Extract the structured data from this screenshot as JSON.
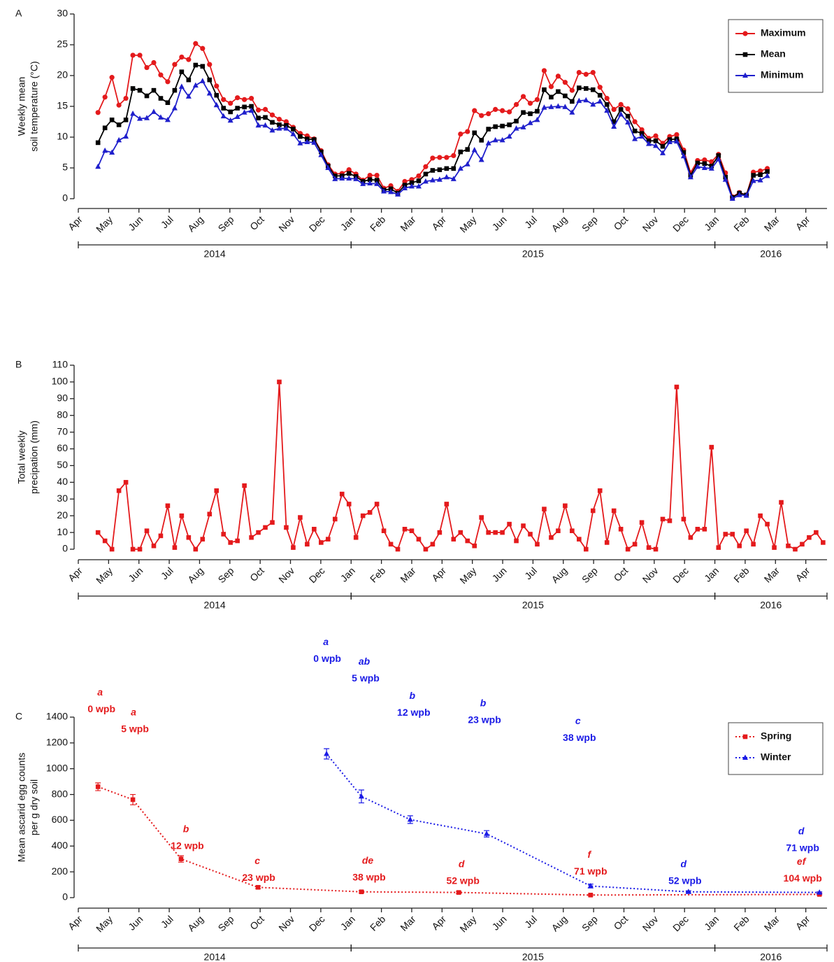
{
  "chart_data": [
    {
      "type": "line",
      "panel": "A",
      "ylabel": [
        "Weekly mean",
        "soil temperature (°C)"
      ],
      "xlim": [
        0,
        24.7
      ],
      "ylim": [
        0,
        30
      ],
      "yticks": [
        0,
        5,
        10,
        15,
        20,
        25,
        30
      ],
      "xticks": [
        {
          "value": 0,
          "label": "Apr"
        },
        {
          "value": 1,
          "label": "May"
        },
        {
          "value": 2,
          "label": "Jun"
        },
        {
          "value": 3,
          "label": "Jul"
        },
        {
          "value": 4,
          "label": "Aug"
        },
        {
          "value": 5,
          "label": "Sep"
        },
        {
          "value": 6,
          "label": "Oct"
        },
        {
          "value": 7,
          "label": "Nov"
        },
        {
          "value": 8,
          "label": "Dec"
        },
        {
          "value": 9,
          "label": "Jan"
        },
        {
          "value": 10,
          "label": "Feb"
        },
        {
          "value": 11,
          "label": "Mar"
        },
        {
          "value": 12,
          "label": "Apr"
        },
        {
          "value": 13,
          "label": "May"
        },
        {
          "value": 14,
          "label": "Jun"
        },
        {
          "value": 15,
          "label": "Jul"
        },
        {
          "value": 16,
          "label": "Aug"
        },
        {
          "value": 17,
          "label": "Sep"
        },
        {
          "value": 18,
          "label": "Oct"
        },
        {
          "value": 19,
          "label": "Nov"
        },
        {
          "value": 20,
          "label": "Dec"
        },
        {
          "value": 21,
          "label": "Jan"
        },
        {
          "value": 22,
          "label": "Feb"
        },
        {
          "value": 23,
          "label": "Mar"
        },
        {
          "value": 24,
          "label": "Apr"
        }
      ],
      "years": [
        {
          "label": "2014",
          "from": 0,
          "to": 9
        },
        {
          "label": "2015",
          "from": 9,
          "to": 21
        },
        {
          "label": "2016",
          "from": 21,
          "to": 24.7
        }
      ],
      "legend": "upper right",
      "x": [
        0.65,
        0.88,
        1.11,
        1.34,
        1.57,
        1.8,
        2.03,
        2.26,
        2.49,
        2.72,
        2.95,
        3.18,
        3.41,
        3.64,
        3.87,
        4.1,
        4.33,
        4.56,
        4.79,
        5.02,
        5.25,
        5.48,
        5.71,
        5.94,
        6.17,
        6.4,
        6.63,
        6.86,
        7.09,
        7.32,
        7.55,
        7.78,
        8.01,
        8.24,
        8.47,
        8.7,
        8.93,
        9.16,
        9.39,
        9.62,
        9.85,
        10.08,
        10.31,
        10.54,
        10.77,
        11,
        11.23,
        11.46,
        11.69,
        11.92,
        12.15,
        12.38,
        12.61,
        12.84,
        13.07,
        13.3,
        13.53,
        13.76,
        13.99,
        14.22,
        14.45,
        14.68,
        14.91,
        15.14,
        15.37,
        15.6,
        15.83,
        16.06,
        16.29,
        16.52,
        16.75,
        16.98,
        17.21,
        17.44,
        17.67,
        17.9,
        18.13,
        18.36,
        18.59,
        18.82,
        19.05,
        19.28,
        19.51,
        19.74,
        19.97,
        20.2,
        20.43,
        20.66,
        20.89,
        21.12,
        21.35,
        21.58,
        21.81,
        22.04,
        22.27,
        22.5,
        22.73
      ],
      "series": [
        {
          "name": "Maximum",
          "color": "#e41a1c",
          "marker": "circle",
          "line_style": "solid",
          "values": [
            14,
            16.5,
            19.7,
            15.2,
            16.3,
            23.3,
            23.3,
            21.3,
            22.1,
            20.1,
            19,
            21.8,
            23,
            22.6,
            25.2,
            24.4,
            21.8,
            18.3,
            16.1,
            15.5,
            16.4,
            16.1,
            16.3,
            14.4,
            14.5,
            13.6,
            12.9,
            12.5,
            11.6,
            10.6,
            10.2,
            9.7,
            7.8,
            5.5,
            4,
            4.1,
            4.7,
            4,
            3,
            3.8,
            3.8,
            1.7,
            2.1,
            1.2,
            2.8,
            3.1,
            3.7,
            5.2,
            6.6,
            6.7,
            6.7,
            7,
            10.5,
            10.9,
            14.3,
            13.5,
            13.8,
            14.5,
            14.3,
            14.1,
            15.3,
            16.6,
            15.5,
            16.1,
            20.8,
            18.2,
            19.9,
            18.9,
            17.6,
            20.5,
            20.2,
            20.5,
            18.1,
            16.3,
            14.5,
            15.3,
            14.6,
            12.5,
            11.2,
            9.8,
            10.2,
            9,
            10.1,
            10.4,
            7.9,
            4.2,
            6.2,
            6.3,
            6,
            7.2,
            4.2,
            0.3,
            1,
            0.6,
            4.3,
            4.5,
            4.9
          ]
        },
        {
          "name": "Mean",
          "color": "#000000",
          "marker": "square",
          "line_style": "solid",
          "values": [
            9.1,
            11.5,
            12.8,
            12,
            12.8,
            17.9,
            17.6,
            16.7,
            17.6,
            16.3,
            15.6,
            17.6,
            20.6,
            19.3,
            21.7,
            21.5,
            19.3,
            16.8,
            14.7,
            14.1,
            14.7,
            14.9,
            15,
            13.1,
            13.2,
            12.4,
            12,
            11.9,
            11.3,
            10.1,
            9.7,
            9.6,
            7.6,
            5.3,
            3.7,
            3.7,
            4.1,
            3.6,
            2.8,
            3.1,
            3,
            1.4,
            1.6,
            0.9,
            2.2,
            2.6,
            2.9,
            4,
            4.6,
            4.7,
            4.9,
            4.9,
            7.6,
            8,
            10.7,
            9.5,
            11.3,
            11.7,
            11.8,
            12,
            12.6,
            14,
            13.8,
            14.2,
            17.7,
            16.5,
            17.4,
            16.7,
            15.8,
            18,
            17.9,
            17.7,
            16.8,
            15.3,
            12.5,
            14.5,
            13.4,
            11,
            10.6,
            9.4,
            9.4,
            8.5,
            9.6,
            9.7,
            7.5,
            3.8,
            5.8,
            5.7,
            5.3,
            7,
            3.5,
            0.2,
            0.9,
            0.6,
            3.8,
            3.9,
            4.4
          ]
        },
        {
          "name": "Minimum",
          "color": "#1f1fcc",
          "marker": "triangle",
          "line_style": "solid",
          "values": [
            5.2,
            7.8,
            7.5,
            9.5,
            10.1,
            13.8,
            13,
            13.1,
            14.1,
            13.2,
            12.8,
            14.7,
            18.2,
            16.6,
            18.4,
            19.1,
            17.1,
            15.2,
            13.4,
            12.7,
            13.3,
            14,
            14.3,
            11.9,
            11.9,
            11.1,
            11.4,
            11.4,
            10.5,
            9,
            9.2,
            9.1,
            7.1,
            5,
            3.2,
            3.3,
            3.3,
            3.2,
            2.4,
            2.5,
            2.4,
            1.2,
            1.1,
            0.7,
            1.7,
            2,
            2,
            2.8,
            3,
            3.1,
            3.5,
            3.2,
            4.9,
            5.6,
            7.9,
            6.3,
            9,
            9.5,
            9.5,
            10.1,
            11.4,
            11.6,
            12.3,
            12.8,
            14.8,
            14.9,
            15,
            14.9,
            14,
            15.9,
            16,
            15.3,
            15.8,
            14.3,
            11.7,
            13.7,
            12.4,
            9.7,
            10.1,
            8.9,
            8.6,
            7.4,
            9.2,
            9.3,
            6.9,
            3.5,
            5.2,
            5,
            4.9,
            6.4,
            3.1,
            0,
            0.6,
            0.5,
            2.9,
            3,
            3.7
          ]
        }
      ]
    },
    {
      "type": "line",
      "panel": "B",
      "ylabel": [
        "Total weekly",
        "precipation (mm)"
      ],
      "xlim": [
        0,
        24.7
      ],
      "ylim": [
        0,
        110
      ],
      "yticks": [
        0,
        10,
        20,
        30,
        40,
        50,
        60,
        70,
        80,
        90,
        100,
        110
      ],
      "xticks": [
        {
          "value": 0,
          "label": "Apr"
        },
        {
          "value": 1,
          "label": "May"
        },
        {
          "value": 2,
          "label": "Jun"
        },
        {
          "value": 3,
          "label": "Jul"
        },
        {
          "value": 4,
          "label": "Aug"
        },
        {
          "value": 5,
          "label": "Sep"
        },
        {
          "value": 6,
          "label": "Oct"
        },
        {
          "value": 7,
          "label": "Nov"
        },
        {
          "value": 8,
          "label": "Dec"
        },
        {
          "value": 9,
          "label": "Jan"
        },
        {
          "value": 10,
          "label": "Feb"
        },
        {
          "value": 11,
          "label": "Mar"
        },
        {
          "value": 12,
          "label": "Apr"
        },
        {
          "value": 13,
          "label": "May"
        },
        {
          "value": 14,
          "label": "Jun"
        },
        {
          "value": 15,
          "label": "Jul"
        },
        {
          "value": 16,
          "label": "Aug"
        },
        {
          "value": 17,
          "label": "Sep"
        },
        {
          "value": 18,
          "label": "Oct"
        },
        {
          "value": 19,
          "label": "Nov"
        },
        {
          "value": 20,
          "label": "Dec"
        },
        {
          "value": 21,
          "label": "Jan"
        },
        {
          "value": 22,
          "label": "Feb"
        },
        {
          "value": 23,
          "label": "Mar"
        },
        {
          "value": 24,
          "label": "Apr"
        }
      ],
      "years": [
        {
          "label": "2014",
          "from": 0,
          "to": 9
        },
        {
          "label": "2015",
          "from": 9,
          "to": 21
        },
        {
          "label": "2016",
          "from": 21,
          "to": 24.7
        }
      ],
      "x": [
        0.65,
        0.88,
        1.11,
        1.34,
        1.57,
        1.8,
        2.03,
        2.26,
        2.49,
        2.72,
        2.95,
        3.18,
        3.41,
        3.64,
        3.87,
        4.1,
        4.33,
        4.56,
        4.79,
        5.02,
        5.25,
        5.48,
        5.71,
        5.94,
        6.17,
        6.4,
        6.63,
        6.86,
        7.09,
        7.32,
        7.55,
        7.78,
        8.01,
        8.24,
        8.47,
        8.7,
        8.93,
        9.16,
        9.39,
        9.62,
        9.85,
        10.08,
        10.31,
        10.54,
        10.77,
        11,
        11.23,
        11.46,
        11.69,
        11.92,
        12.15,
        12.38,
        12.61,
        12.84,
        13.07,
        13.3,
        13.53,
        13.76,
        13.99,
        14.22,
        14.45,
        14.68,
        14.91,
        15.14,
        15.37,
        15.6,
        15.83,
        16.06,
        16.29,
        16.52,
        16.75,
        16.98,
        17.21,
        17.44,
        17.67,
        17.9,
        18.13,
        18.36,
        18.59,
        18.82,
        19.05,
        19.28,
        19.51,
        19.74,
        19.97,
        20.2,
        20.43,
        20.66,
        20.89,
        21.12,
        21.35,
        21.58,
        21.81,
        22.04,
        22.27,
        22.5,
        22.73,
        22.96,
        23.19,
        23.42,
        23.65,
        23.88,
        24.11,
        24.34,
        24.57
      ],
      "series": [
        {
          "color": "#e41a1c",
          "marker": "square",
          "line_style": "solid",
          "values": [
            10,
            5,
            0,
            35,
            40,
            0,
            0,
            11,
            2,
            8,
            26,
            1,
            20,
            7,
            0,
            6,
            21,
            35,
            9,
            4,
            5,
            38,
            7,
            10,
            13,
            16,
            100,
            13,
            1,
            19,
            3,
            12,
            4,
            6,
            18,
            33,
            27,
            7,
            20,
            22,
            27,
            11,
            3,
            0,
            12,
            11,
            6,
            0,
            3,
            10,
            27,
            6,
            10,
            5,
            2,
            19,
            10,
            10,
            10,
            15,
            5,
            14,
            9,
            3,
            24,
            7,
            11,
            26,
            11,
            6,
            0,
            23,
            35,
            4,
            23,
            12,
            0,
            3,
            16,
            1,
            0,
            18,
            17,
            97,
            18,
            7,
            12,
            12,
            61,
            1,
            9,
            9,
            2,
            11,
            3,
            20,
            15,
            1,
            28,
            2,
            0,
            3,
            7,
            10,
            4
          ]
        }
      ]
    },
    {
      "type": "line",
      "panel": "C",
      "ylabel": [
        "Mean ascarid egg counts",
        "per g dry soil"
      ],
      "xlim": [
        0,
        24.7
      ],
      "ylim": [
        0,
        1400
      ],
      "yticks": [
        0,
        200,
        400,
        600,
        800,
        1000,
        1200,
        1400
      ],
      "xticks": [
        {
          "value": 0,
          "label": "Apr"
        },
        {
          "value": 1,
          "label": "May"
        },
        {
          "value": 2,
          "label": "Jun"
        },
        {
          "value": 3,
          "label": "Jul"
        },
        {
          "value": 4,
          "label": "Aug"
        },
        {
          "value": 5,
          "label": "Sep"
        },
        {
          "value": 6,
          "label": "Oct"
        },
        {
          "value": 7,
          "label": "Nov"
        },
        {
          "value": 8,
          "label": "Dec"
        },
        {
          "value": 9,
          "label": "Jan"
        },
        {
          "value": 10,
          "label": "Feb"
        },
        {
          "value": 11,
          "label": "Mar"
        },
        {
          "value": 12,
          "label": "Apr"
        },
        {
          "value": 13,
          "label": "May"
        },
        {
          "value": 14,
          "label": "Jun"
        },
        {
          "value": 15,
          "label": "Jul"
        },
        {
          "value": 16,
          "label": "Aug"
        },
        {
          "value": 17,
          "label": "Sep"
        },
        {
          "value": 18,
          "label": "Oct"
        },
        {
          "value": 19,
          "label": "Nov"
        },
        {
          "value": 20,
          "label": "Dec"
        },
        {
          "value": 21,
          "label": "Jan"
        },
        {
          "value": 22,
          "label": "Feb"
        },
        {
          "value": 23,
          "label": "Mar"
        },
        {
          "value": 24,
          "label": "Apr"
        }
      ],
      "years": [
        {
          "label": "2014",
          "from": 0,
          "to": 9
        },
        {
          "label": "2015",
          "from": 9,
          "to": 21
        },
        {
          "label": "2016",
          "from": 21,
          "to": 24.7
        }
      ],
      "legend": "upper right",
      "series": [
        {
          "name": "Spring",
          "color": "#e41a1c",
          "marker": "square",
          "line_style": "dotted",
          "x": [
            0.65,
            1.8,
            3.39,
            5.93,
            9.34,
            12.55,
            16.9,
            24.45
          ],
          "values": [
            860,
            760,
            300,
            80,
            45,
            40,
            20,
            25
          ],
          "errors": [
            30,
            40,
            25,
            10,
            8,
            8,
            5,
            5
          ],
          "letters": [
            "a",
            "a",
            "b",
            "c",
            "de",
            "d",
            "f",
            "ef"
          ],
          "wpb": [
            "0 wpb",
            "5 wpb",
            "12 wpb",
            "23 wpb",
            "38 wpb",
            "52 wpb",
            "71 wpb",
            "104 wpb"
          ]
        },
        {
          "name": "Winter",
          "color": "#1a1ae6",
          "marker": "triangle",
          "line_style": "dotted",
          "x": [
            8.19,
            9.34,
            10.95,
            13.47,
            16.9,
            20.13,
            24.45
          ],
          "values": [
            1115,
            785,
            605,
            495,
            90,
            45,
            40
          ],
          "errors": [
            40,
            50,
            30,
            25,
            15,
            8,
            5
          ],
          "letters": [
            "a",
            "ab",
            "b",
            "b",
            "c",
            "d",
            "d"
          ],
          "wpb": [
            "0 wpb",
            "5 wpb",
            "12 wpb",
            "23 wpb",
            "38 wpb",
            "52 wpb",
            "71 wpb"
          ]
        }
      ]
    }
  ]
}
